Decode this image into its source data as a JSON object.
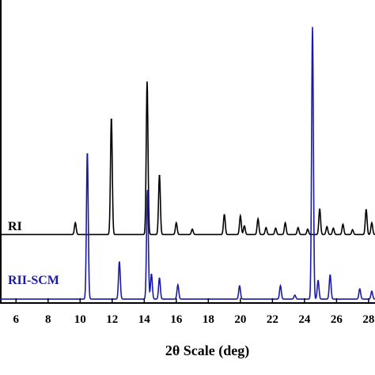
{
  "chart_data": {
    "type": "line",
    "title": "",
    "xlabel": "2θ Scale (deg)",
    "ylabel": "",
    "xlim": [
      5,
      28.4
    ],
    "ylim": [
      0,
      1
    ],
    "grid": false,
    "legend": "none",
    "x_ticks": [
      6,
      8,
      10,
      12,
      14,
      16,
      18,
      20,
      22,
      24,
      26,
      28
    ],
    "x_tick_labels": [
      "6",
      "8",
      "10",
      "12",
      "14",
      "16",
      "18",
      "20",
      "22",
      "24",
      "26",
      "28"
    ],
    "series": [
      {
        "name": "RI",
        "color": "#000000",
        "baseline": 0.226,
        "peaks": [
          {
            "x": 9.7,
            "height": 0.039
          },
          {
            "x": 11.95,
            "height": 0.387
          },
          {
            "x": 14.18,
            "height": 0.505
          },
          {
            "x": 14.95,
            "height": 0.198
          },
          {
            "x": 16.0,
            "height": 0.039
          },
          {
            "x": 17.0,
            "height": 0.018
          },
          {
            "x": 19.0,
            "height": 0.067
          },
          {
            "x": 20.0,
            "height": 0.062
          },
          {
            "x": 20.25,
            "height": 0.029
          },
          {
            "x": 21.1,
            "height": 0.052
          },
          {
            "x": 21.6,
            "height": 0.023
          },
          {
            "x": 22.2,
            "height": 0.021
          },
          {
            "x": 22.8,
            "height": 0.039
          },
          {
            "x": 23.6,
            "height": 0.023
          },
          {
            "x": 24.2,
            "height": 0.018
          },
          {
            "x": 24.95,
            "height": 0.085
          },
          {
            "x": 25.4,
            "height": 0.026
          },
          {
            "x": 25.8,
            "height": 0.021
          },
          {
            "x": 26.4,
            "height": 0.034
          },
          {
            "x": 27.0,
            "height": 0.016
          },
          {
            "x": 27.85,
            "height": 0.083
          },
          {
            "x": 28.2,
            "height": 0.039
          }
        ]
      },
      {
        "name": "RII-SCM",
        "color": "#1a1aa8",
        "baseline": 0.013,
        "peaks": [
          {
            "x": 10.45,
            "height": 0.487
          },
          {
            "x": 12.45,
            "height": 0.124
          },
          {
            "x": 14.2,
            "height": 0.36
          },
          {
            "x": 14.45,
            "height": 0.083
          },
          {
            "x": 14.95,
            "height": 0.07
          },
          {
            "x": 16.1,
            "height": 0.047
          },
          {
            "x": 19.95,
            "height": 0.044
          },
          {
            "x": 22.5,
            "height": 0.044
          },
          {
            "x": 23.4,
            "height": 0.013
          },
          {
            "x": 24.5,
            "height": 0.898
          },
          {
            "x": 24.85,
            "height": 0.062
          },
          {
            "x": 25.6,
            "height": 0.081
          },
          {
            "x": 27.45,
            "height": 0.034
          },
          {
            "x": 28.2,
            "height": 0.026
          }
        ]
      }
    ]
  }
}
